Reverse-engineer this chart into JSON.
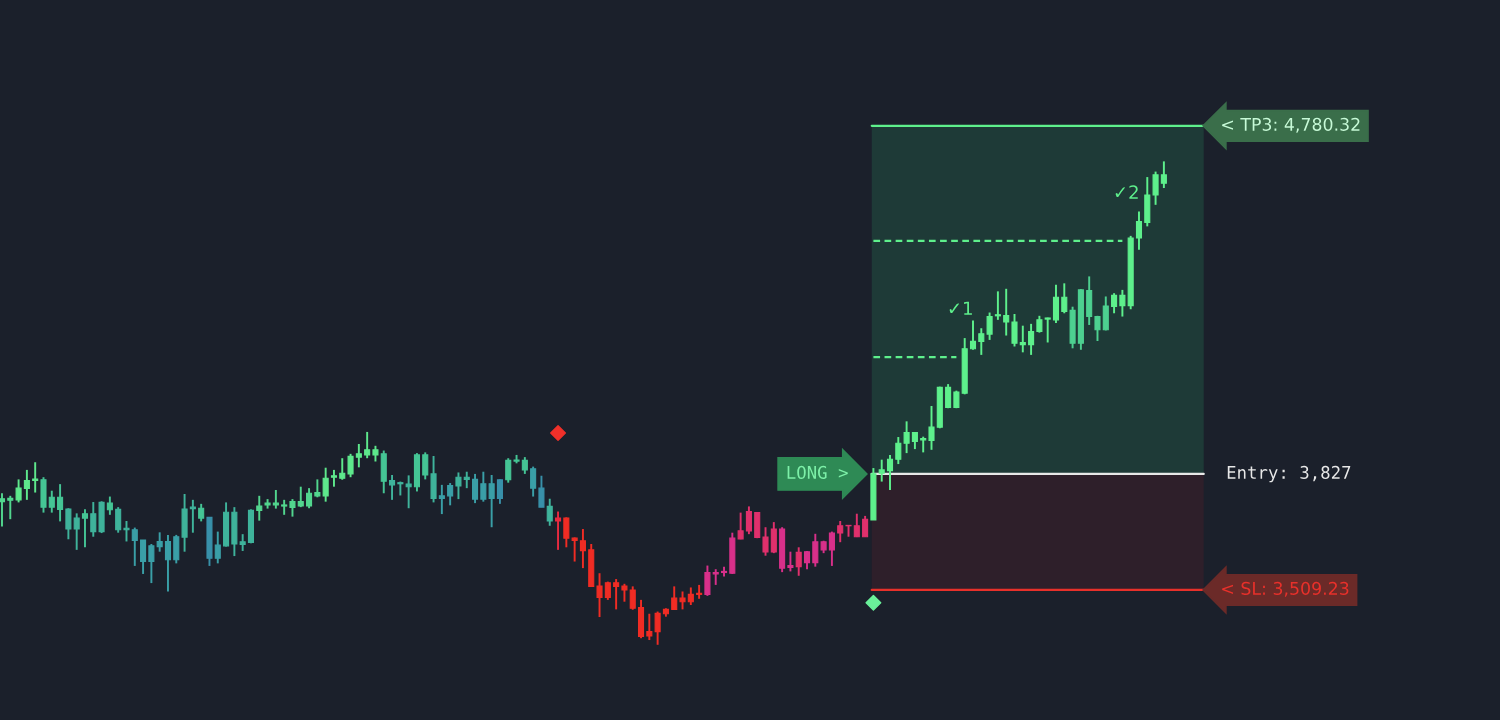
{
  "chart_data": {
    "type": "candlestick",
    "categories": [
      null,
      null,
      null,
      null,
      null,
      null,
      null,
      null,
      null,
      null,
      null,
      null,
      null,
      null,
      null,
      null,
      null,
      null,
      null,
      null,
      null,
      null,
      null,
      null,
      null,
      null,
      null,
      null,
      null,
      null,
      null,
      null,
      null,
      null,
      null,
      null,
      null,
      null,
      null,
      null,
      null,
      null,
      null,
      null,
      null,
      null,
      null,
      null,
      null,
      null,
      null,
      null,
      null,
      null,
      null,
      null,
      null,
      null,
      null,
      null,
      null,
      null,
      null,
      null,
      null,
      null,
      null,
      null,
      null,
      null,
      null,
      null,
      null,
      null,
      null,
      null,
      null,
      null,
      null,
      null,
      null,
      null,
      null,
      null,
      null,
      null,
      null,
      null,
      null,
      null,
      null,
      null,
      null,
      null,
      null,
      null,
      null,
      null,
      null,
      null,
      null,
      null,
      null,
      null,
      null,
      null,
      null,
      null,
      null,
      null,
      null,
      null,
      null,
      null,
      null,
      null,
      null,
      null,
      null,
      null,
      null,
      null,
      null,
      null,
      null,
      null,
      null,
      null,
      null,
      null,
      null,
      null,
      null,
      null,
      null,
      null,
      null,
      null,
      null,
      null,
      null
    ],
    "ohlc": [
      [
        3751,
        3774,
        3683,
        3759
      ],
      [
        3755,
        3767,
        3703,
        3760
      ],
      [
        3756,
        3812,
        3749,
        3788
      ],
      [
        3787,
        3838,
        3756,
        3809
      ],
      [
        3809,
        3859,
        3776,
        3813
      ],
      [
        3736,
        3818,
        3721,
        3811
      ],
      [
        3736,
        3781,
        3721,
        3763
      ],
      [
        3730,
        3799,
        3697,
        3763
      ],
      [
        3676,
        3733,
        3648,
        3731
      ],
      [
        3676,
        3719,
        3619,
        3706
      ],
      [
        3706,
        3730,
        3626,
        3718
      ],
      [
        3669,
        3750,
        3655,
        3718
      ],
      [
        3669,
        3752,
        3665,
        3749
      ],
      [
        3729,
        3765,
        3715,
        3747
      ],
      [
        3674,
        3736,
        3666,
        3730
      ],
      [
        3674,
        3698,
        3642,
        3678
      ],
      [
        3645,
        3680,
        3575,
        3674
      ],
      [
        3587,
        3646,
        3553,
        3646
      ],
      [
        3587,
        3635,
        3528,
        3630
      ],
      [
        3628,
        3667,
        3614,
        3642
      ],
      [
        3592,
        3660,
        3505,
        3642
      ],
      [
        3592,
        3660,
        3582,
        3655
      ],
      [
        3654,
        3772,
        3614,
        3731
      ],
      [
        3732,
        3756,
        3666,
        3736
      ],
      [
        3706,
        3745,
        3697,
        3733
      ],
      [
        3596,
        3708,
        3575,
        3708
      ],
      [
        3596,
        3669,
        3582,
        3632
      ],
      [
        3630,
        3749,
        3628,
        3722
      ],
      [
        3635,
        3736,
        3602,
        3722
      ],
      [
        3634,
        3662,
        3616,
        3641
      ],
      [
        3639,
        3730,
        3637,
        3727
      ],
      [
        3727,
        3767,
        3699,
        3739
      ],
      [
        3742,
        3758,
        3732,
        3747
      ],
      [
        3742,
        3783,
        3732,
        3747
      ],
      [
        3739,
        3756,
        3715,
        3742
      ],
      [
        3735,
        3758,
        3710,
        3751
      ],
      [
        3739,
        3792,
        3736,
        3751
      ],
      [
        3739,
        3788,
        3733,
        3774
      ],
      [
        3767,
        3812,
        3763,
        3776
      ],
      [
        3767,
        3844,
        3751,
        3815
      ],
      [
        3818,
        3838,
        3792,
        3822
      ],
      [
        3815,
        3870,
        3811,
        3829
      ],
      [
        3827,
        3882,
        3818,
        3875
      ],
      [
        3873,
        3909,
        3845,
        3882
      ],
      [
        3879,
        3942,
        3870,
        3893
      ],
      [
        3879,
        3904,
        3861,
        3893
      ],
      [
        3807,
        3891,
        3774,
        3882
      ],
      [
        3797,
        3824,
        3756,
        3809
      ],
      [
        3800,
        3806,
        3768,
        3803
      ],
      [
        3792,
        3823,
        3733,
        3799
      ],
      [
        3792,
        3884,
        3779,
        3879
      ],
      [
        3824,
        3886,
        3812,
        3879
      ],
      [
        3760,
        3876,
        3749,
        3827
      ],
      [
        3760,
        3797,
        3717,
        3767
      ],
      [
        3767,
        3802,
        3741,
        3795
      ],
      [
        3794,
        3831,
        3758,
        3818
      ],
      [
        3812,
        3833,
        3788,
        3818
      ],
      [
        3758,
        3827,
        3747,
        3812
      ],
      [
        3758,
        3833,
        3751,
        3800
      ],
      [
        3760,
        3824,
        3681,
        3800
      ],
      [
        3760,
        3812,
        3745,
        3811
      ],
      [
        3811,
        3870,
        3803,
        3864
      ],
      [
        3862,
        3879,
        3856,
        3865
      ],
      [
        3838,
        3873,
        3827,
        3864
      ],
      [
        3788,
        3847,
        3765,
        3841
      ],
      [
        3736,
        3822,
        3736,
        3788
      ],
      [
        3698,
        3759,
        3685,
        3738
      ],
      [
        3698,
        3724,
        3619,
        3706
      ],
      [
        3651,
        3708,
        3626,
        3706
      ],
      [
        3645,
        3653,
        3587,
        3651
      ],
      [
        3617,
        3676,
        3569,
        3644
      ],
      [
        3519,
        3635,
        3519,
        3619
      ],
      [
        3489,
        3555,
        3435,
        3520
      ],
      [
        3489,
        3532,
        3482,
        3529
      ],
      [
        3519,
        3539,
        3456,
        3529
      ],
      [
        3509,
        3526,
        3477,
        3520
      ],
      [
        3459,
        3519,
        3455,
        3509
      ],
      [
        3382,
        3482,
        3377,
        3461
      ],
      [
        3383,
        3444,
        3372,
        3395
      ],
      [
        3395,
        3450,
        3359,
        3445
      ],
      [
        3444,
        3459,
        3436,
        3456
      ],
      [
        3456,
        3519,
        3455,
        3487
      ],
      [
        3477,
        3505,
        3456,
        3487
      ],
      [
        3477,
        3516,
        3468,
        3497
      ],
      [
        3497,
        3523,
        3485,
        3500
      ],
      [
        3497,
        3576,
        3493,
        3557
      ],
      [
        3553,
        3566,
        3523,
        3557
      ],
      [
        3557,
        3573,
        3546,
        3560
      ],
      [
        3555,
        3666,
        3553,
        3651
      ],
      [
        3649,
        3721,
        3648,
        3671
      ],
      [
        3671,
        3738,
        3662,
        3724
      ],
      [
        3653,
        3721,
        3651,
        3721
      ],
      [
        3613,
        3681,
        3603,
        3654
      ],
      [
        3613,
        3695,
        3610,
        3676
      ],
      [
        3569,
        3681,
        3558,
        3676
      ],
      [
        3571,
        3614,
        3560,
        3576
      ],
      [
        3573,
        3626,
        3548,
        3612
      ],
      [
        3584,
        3616,
        3566,
        3614
      ],
      [
        3584,
        3663,
        3573,
        3641
      ],
      [
        3619,
        3644,
        3610,
        3641
      ],
      [
        3619,
        3669,
        3575,
        3665
      ],
      [
        3665,
        3698,
        3640,
        3685
      ],
      [
        3685,
        3687,
        3655,
        3686
      ],
      [
        3655,
        3718,
        3654,
        3685
      ],
      [
        3655,
        3712,
        3655,
        3703
      ],
      [
        3701,
        3843,
        3701,
        3827
      ],
      [
        3829,
        3866,
        3806,
        3838
      ],
      [
        3836,
        3879,
        3783,
        3867
      ],
      [
        3867,
        3928,
        3854,
        3911
      ],
      [
        3911,
        3971,
        3884,
        3940
      ],
      [
        3916,
        3940,
        3895,
        3940
      ],
      [
        3920,
        3929,
        3886,
        3924
      ],
      [
        3919,
        4013,
        3893,
        3955
      ],
      [
        3955,
        4066,
        3952,
        4064
      ],
      [
        4009,
        4073,
        4007,
        4064
      ],
      [
        4009,
        4055,
        4007,
        4051
      ],
      [
        4048,
        4199,
        4045,
        4170
      ],
      [
        4170,
        4247,
        4167,
        4190
      ],
      [
        4190,
        4226,
        4153,
        4211
      ],
      [
        4210,
        4269,
        4194,
        4258
      ],
      [
        4260,
        4327,
        4249,
        4263
      ],
      [
        4243,
        4334,
        4206,
        4261
      ],
      [
        4185,
        4265,
        4176,
        4243
      ],
      [
        4181,
        4233,
        4160,
        4187
      ],
      [
        4181,
        4238,
        4153,
        4217
      ],
      [
        4217,
        4260,
        4214,
        4249
      ],
      [
        4251,
        4255,
        4187,
        4254
      ],
      [
        4249,
        4345,
        4240,
        4311
      ],
      [
        4272,
        4349,
        4267,
        4311
      ],
      [
        4185,
        4285,
        4171,
        4275
      ],
      [
        4185,
        4333,
        4167,
        4331
      ],
      [
        4258,
        4368,
        4235,
        4329
      ],
      [
        4222,
        4260,
        4191,
        4258
      ],
      [
        4222,
        4313,
        4220,
        4287
      ],
      [
        4286,
        4322,
        4267,
        4316
      ],
      [
        4288,
        4331,
        4258,
        4316
      ],
      [
        4288,
        4479,
        4278,
        4473
      ],
      [
        4473,
        4546,
        4441,
        4518
      ],
      [
        4516,
        4640,
        4505,
        4591
      ],
      [
        4591,
        4655,
        4564,
        4646
      ],
      [
        4623,
        4683,
        4610,
        4646
      ]
    ],
    "colors": [
      "#52d68e",
      "#52d68e",
      "#5ee88c",
      "#5ee88c",
      "#5ee88c",
      "#45c595",
      "#45c595",
      "#45c595",
      "#3fb39b",
      "#3fb39b",
      "#45c595",
      "#3fb39b",
      "#3fb39b",
      "#45c595",
      "#3fb39b",
      "#3fb39b",
      "#3a9fa7",
      "#3a9fa7",
      "#3a9fa7",
      "#3a9fa7",
      "#3a9fa7",
      "#3a9fa7",
      "#3fb39b",
      "#3fb39b",
      "#45c595",
      "#3890a9",
      "#3a9fa7",
      "#3fb39b",
      "#3fb39b",
      "#3fb39b",
      "#3fb39b",
      "#52d68e",
      "#52d68e",
      "#52d68e",
      "#52d68e",
      "#52d68e",
      "#52d68e",
      "#52d68e",
      "#52d68e",
      "#5ee88c",
      "#5ee88c",
      "#5ee88c",
      "#5ee88c",
      "#5ee88c",
      "#5ee88c",
      "#5ee88c",
      "#45c595",
      "#3fb39b",
      "#3fb39b",
      "#3fb39b",
      "#45c595",
      "#45c595",
      "#3fb39b",
      "#3a9fa7",
      "#3a9fa7",
      "#3fb39b",
      "#3fb39b",
      "#3a9fa7",
      "#3a9fa7",
      "#3a9fa7",
      "#3890a9",
      "#45c595",
      "#45c595",
      "#45c595",
      "#3a9fa7",
      "#3890a9",
      "#3fb39b",
      "#e82a40",
      "#f02c24",
      "#f02c24",
      "#f02c24",
      "#f02c24",
      "#f02c24",
      "#f02c24",
      "#f02c24",
      "#f02c24",
      "#f02c24",
      "#f02c24",
      "#f02c24",
      "#f02c24",
      "#f02c24",
      "#f02c24",
      "#f02c24",
      "#f02c24",
      "#f02c24",
      "#d8308a",
      "#d8308a",
      "#d8308a",
      "#d8308a",
      "#e0306c",
      "#e0306c",
      "#e0306c",
      "#e0306c",
      "#e0306c",
      "#d8308a",
      "#d8308a",
      "#e0306c",
      "#d8308a",
      "#d8308a",
      "#d8308a",
      "#d8308a",
      "#e0306c",
      "#e0306c",
      "#e0306c",
      "#e0306c",
      "#5ef08c",
      "#5ef08c",
      "#5ef08c",
      "#5ef08c",
      "#5ef08c",
      "#5ef08c",
      "#5ef08c",
      "#5ef08c",
      "#5ef08c",
      "#5ef08c",
      "#5ef08c",
      "#5ef08c",
      "#5ef08c",
      "#5ef08c",
      "#5ef08c",
      "#5ef08c",
      "#5ef08c",
      "#5ef08c",
      "#5ef08c",
      "#5ef08c",
      "#5ef08c",
      "#5ef08c",
      "#5ef08c",
      "#5ef08c",
      "#4dd090",
      "#4dd090",
      "#4dd090",
      "#4dd090",
      "#4dd090",
      "#5ef08c",
      "#5ef08c",
      "#5ef08c",
      "#5ef08c",
      "#5ef08c",
      "#5ef08c",
      "#5ef08c"
    ],
    "series": [
      {
        "type": "line",
        "line_style": "dashed",
        "color": "#5ef08c",
        "values": [
          null,
          null,
          null,
          null,
          null,
          null,
          null,
          null,
          null,
          null,
          null,
          null,
          null,
          null,
          null,
          null,
          null,
          null,
          null,
          null,
          null,
          null,
          null,
          null,
          null,
          null,
          null,
          null,
          null,
          null,
          null,
          null,
          null,
          null,
          null,
          null,
          null,
          null,
          null,
          null,
          null,
          null,
          null,
          null,
          null,
          null,
          null,
          null,
          null,
          null,
          null,
          null,
          null,
          null,
          null,
          null,
          null,
          null,
          null,
          null,
          null,
          null,
          null,
          null,
          null,
          null,
          null,
          null,
          null,
          null,
          null,
          null,
          null,
          null,
          null,
          null,
          null,
          null,
          null,
          null,
          null,
          null,
          null,
          null,
          null,
          null,
          null,
          null,
          null,
          null,
          null,
          null,
          null,
          null,
          null,
          null,
          null,
          null,
          null,
          null,
          null,
          null,
          null,
          null,
          null,
          4147,
          4147,
          4147,
          4147,
          4147,
          4147,
          4147,
          4147,
          4147,
          4147,
          4147,
          null,
          null,
          null,
          null,
          null,
          null,
          null,
          null,
          null,
          null,
          null,
          null,
          null,
          null,
          null,
          null,
          null,
          null,
          null,
          null,
          null,
          null,
          null,
          null,
          null
        ]
      },
      {
        "type": "line",
        "line_style": "dashed",
        "color": "#5ef08c",
        "values": [
          null,
          null,
          null,
          null,
          null,
          null,
          null,
          null,
          null,
          null,
          null,
          null,
          null,
          null,
          null,
          null,
          null,
          null,
          null,
          null,
          null,
          null,
          null,
          null,
          null,
          null,
          null,
          null,
          null,
          null,
          null,
          null,
          null,
          null,
          null,
          null,
          null,
          null,
          null,
          null,
          null,
          null,
          null,
          null,
          null,
          null,
          null,
          null,
          null,
          null,
          null,
          null,
          null,
          null,
          null,
          null,
          null,
          null,
          null,
          null,
          null,
          null,
          null,
          null,
          null,
          null,
          null,
          null,
          null,
          null,
          null,
          null,
          null,
          null,
          null,
          null,
          null,
          null,
          null,
          null,
          null,
          null,
          null,
          null,
          null,
          null,
          null,
          null,
          null,
          null,
          null,
          null,
          null,
          null,
          null,
          null,
          null,
          null,
          null,
          null,
          null,
          null,
          null,
          null,
          null,
          4465,
          4465,
          4465,
          4465,
          4465,
          4465,
          4465,
          4465,
          4465,
          4465,
          4465,
          4465,
          4465,
          4465,
          4465,
          4465,
          4465,
          4465,
          4465,
          4465,
          4465,
          4465,
          4465,
          4465,
          4465,
          4465,
          4465,
          4465,
          4465,
          4465,
          4465,
          null,
          null,
          null,
          null,
          null
        ]
      },
      {
        "type": "scatter",
        "marker": "diamond",
        "color": "#f0302a",
        "values": [
          null,
          null,
          null,
          null,
          null,
          null,
          null,
          null,
          null,
          null,
          null,
          null,
          null,
          null,
          null,
          null,
          null,
          null,
          null,
          null,
          null,
          null,
          null,
          null,
          null,
          null,
          null,
          null,
          null,
          null,
          null,
          null,
          null,
          null,
          null,
          null,
          null,
          null,
          null,
          null,
          null,
          null,
          null,
          null,
          null,
          null,
          null,
          null,
          null,
          null,
          null,
          null,
          null,
          null,
          null,
          null,
          null,
          null,
          null,
          null,
          null,
          null,
          null,
          null,
          null,
          null,
          null,
          3939,
          null,
          null,
          null,
          null,
          null,
          null,
          null,
          null,
          null,
          null,
          null,
          null,
          null,
          null,
          null,
          null,
          null,
          null,
          null,
          null,
          null,
          null,
          null,
          null,
          null,
          null,
          null,
          null,
          null,
          null,
          null,
          null,
          null,
          null,
          null,
          null,
          null,
          null,
          null,
          null,
          null,
          null,
          null,
          null,
          null,
          null,
          null,
          null,
          null,
          null,
          null,
          null,
          null,
          null,
          null,
          null,
          null,
          null,
          null,
          null,
          null,
          null,
          null,
          null,
          null,
          null,
          null,
          null,
          null,
          null,
          null,
          null,
          null
        ]
      },
      {
        "type": "scatter",
        "marker": "diamond",
        "color": "#6af09a",
        "values": [
          null,
          null,
          null,
          null,
          null,
          null,
          null,
          null,
          null,
          null,
          null,
          null,
          null,
          null,
          null,
          null,
          null,
          null,
          null,
          null,
          null,
          null,
          null,
          null,
          null,
          null,
          null,
          null,
          null,
          null,
          null,
          null,
          null,
          null,
          null,
          null,
          null,
          null,
          null,
          null,
          null,
          null,
          null,
          null,
          null,
          null,
          null,
          null,
          null,
          null,
          null,
          null,
          null,
          null,
          null,
          null,
          null,
          null,
          null,
          null,
          null,
          null,
          null,
          null,
          null,
          null,
          null,
          null,
          null,
          null,
          null,
          null,
          null,
          null,
          null,
          null,
          null,
          null,
          null,
          null,
          null,
          null,
          null,
          null,
          null,
          null,
          null,
          null,
          null,
          null,
          null,
          null,
          null,
          null,
          null,
          null,
          null,
          null,
          null,
          null,
          null,
          null,
          null,
          null,
          null,
          3474,
          null,
          null,
          null,
          null,
          null,
          null,
          null,
          null,
          null,
          null,
          null,
          null,
          null,
          null,
          null,
          null,
          null,
          null,
          null,
          null,
          null,
          null,
          null,
          null,
          null,
          null,
          null,
          null,
          null,
          null,
          null,
          null,
          null,
          null,
          null
        ]
      }
    ],
    "ylim": [
      3153,
      5125
    ],
    "tick_labels": false,
    "bands": [
      {
        "axis": "y",
        "from": 3827,
        "to": 4780.32,
        "color": "#1e3a37"
      },
      {
        "axis": "y",
        "from": 3509.23,
        "to": 3827,
        "color": "#2e1f2a"
      }
    ],
    "ref_lines": [
      {
        "axis": "y",
        "value": 4780.32,
        "label": "< TP3: 4,780.32",
        "color": "#5ef08c"
      },
      {
        "axis": "y",
        "value": 3827,
        "label": "Entry: 3,827",
        "color": "#e8e8e8"
      },
      {
        "axis": "y",
        "value": 3509.23,
        "label": "< SL: 3,509.23",
        "color": "#e8302a"
      }
    ],
    "annotations": [
      "LONG >",
      "✓1",
      "✓2"
    ]
  }
}
